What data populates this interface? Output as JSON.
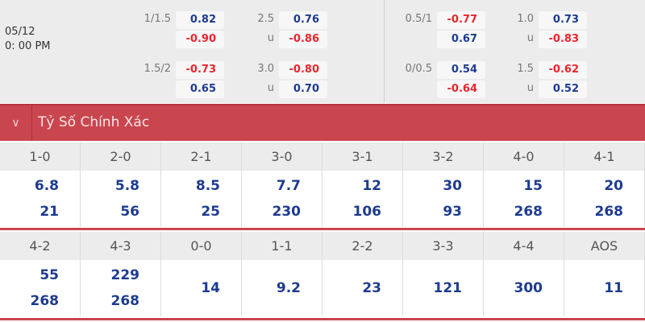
{
  "match": {
    "date": "05/12",
    "time": "0: 00 PM"
  },
  "odds_left": [
    {
      "hdp": "1/1.5",
      "hdp_home": "0.82",
      "hdp_away": "-0.90",
      "ou": "2.5",
      "ou_under_label": "u",
      "ou_over": "0.76",
      "ou_under": "-0.86"
    },
    {
      "hdp": "1.5/2",
      "hdp_home": "-0.73",
      "hdp_away": "0.65",
      "ou": "3.0",
      "ou_under_label": "u",
      "ou_over": "-0.80",
      "ou_under": "0.70"
    }
  ],
  "odds_right": [
    {
      "hdp": "0.5/1",
      "hdp_home": "-0.77",
      "hdp_away": "0.67",
      "ou": "1.0",
      "ou_under_label": "u",
      "ou_over": "0.73",
      "ou_under": "-0.83"
    },
    {
      "hdp": "0/0.5",
      "hdp_home": "0.54",
      "hdp_away": "-0.64",
      "ou": "1.5",
      "ou_under_label": "u",
      "ou_over": "-0.62",
      "ou_under": "0.52"
    }
  ],
  "section": {
    "title": "Tỷ Số Chính Xác",
    "toggle_icon": "chevron-down-icon"
  },
  "scores_row1": [
    {
      "score": "1-0",
      "v1": "6.8",
      "v2": "21"
    },
    {
      "score": "2-0",
      "v1": "5.8",
      "v2": "56"
    },
    {
      "score": "2-1",
      "v1": "8.5",
      "v2": "25"
    },
    {
      "score": "3-0",
      "v1": "7.7",
      "v2": "230"
    },
    {
      "score": "3-1",
      "v1": "12",
      "v2": "106"
    },
    {
      "score": "3-2",
      "v1": "30",
      "v2": "93"
    },
    {
      "score": "4-0",
      "v1": "15",
      "v2": "268"
    },
    {
      "score": "4-1",
      "v1": "20",
      "v2": "268"
    }
  ],
  "scores_row2": [
    {
      "score": "4-2",
      "v1": "55",
      "v2": "268"
    },
    {
      "score": "4-3",
      "v1": "229",
      "v2": "268"
    },
    {
      "score": "0-0",
      "v1": "14"
    },
    {
      "score": "1-1",
      "v1": "9.2"
    },
    {
      "score": "2-2",
      "v1": "23"
    },
    {
      "score": "3-3",
      "v1": "121"
    },
    {
      "score": "4-4",
      "v1": "300"
    },
    {
      "score": "AOS",
      "v1": "11"
    }
  ],
  "colors": {
    "positive": "#1d3b8f",
    "negative": "#e8262e",
    "header": "#c9464e"
  }
}
